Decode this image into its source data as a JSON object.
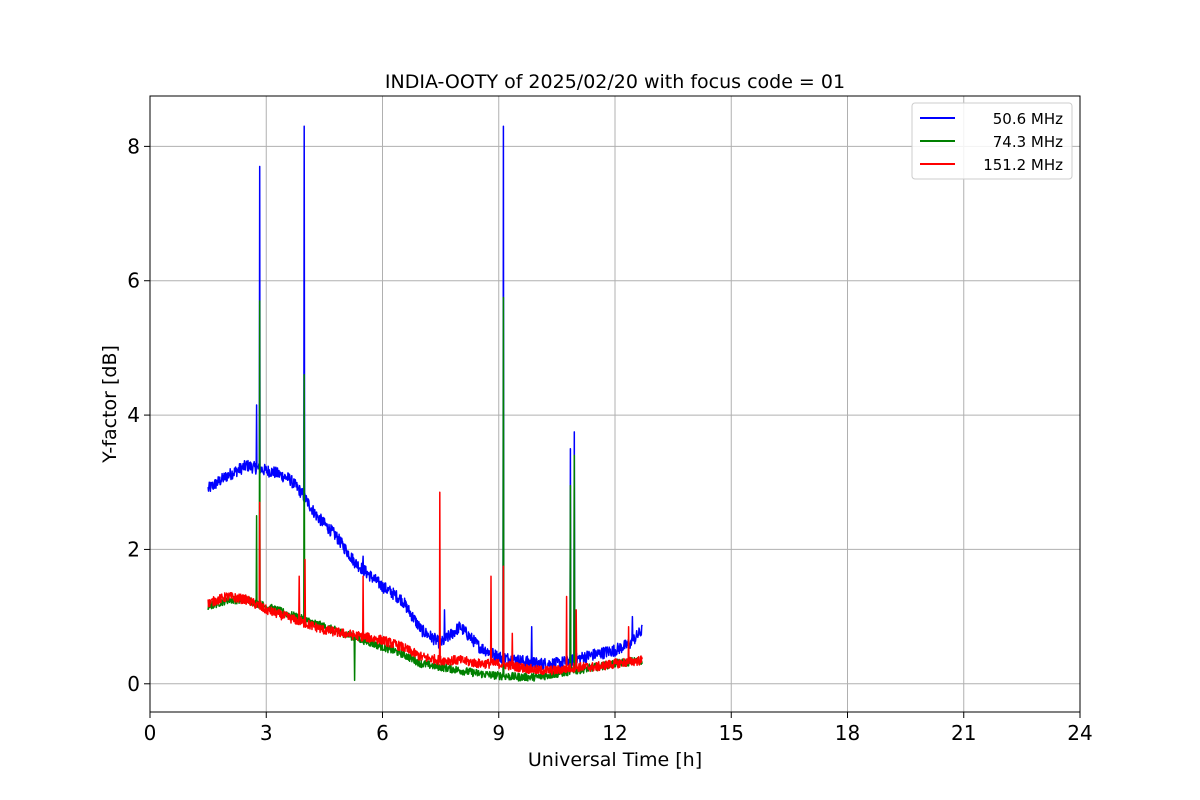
{
  "chart_data": {
    "type": "line",
    "title": "INDIA-OOTY of 2025/02/20 with focus code = 01",
    "xlabel": "Universal Time [h]",
    "ylabel": "Y-factor [dB]",
    "xlim": [
      0,
      24
    ],
    "ylim": [
      -0.42,
      8.75
    ],
    "xticks": [
      0,
      3,
      6,
      9,
      12,
      15,
      18,
      21,
      24
    ],
    "yticks": [
      0,
      2,
      4,
      6,
      8
    ],
    "grid": true,
    "legend_position": "top-right",
    "series": [
      {
        "name": " 50.6 MHz",
        "color": "#0000ff",
        "noise": 0.09,
        "x": [
          1.5,
          2.0,
          2.5,
          2.8,
          3.2,
          3.6,
          3.9,
          4.3,
          4.8,
          5.3,
          5.7,
          6.0,
          6.5,
          7.0,
          7.5,
          8.0,
          8.5,
          9.0,
          9.5,
          10.0,
          10.5,
          10.9,
          11.2,
          11.6,
          12.0,
          12.4,
          12.7
        ],
        "y": [
          2.9,
          3.1,
          3.25,
          3.2,
          3.15,
          3.05,
          2.85,
          2.5,
          2.2,
          1.8,
          1.6,
          1.45,
          1.25,
          0.8,
          0.6,
          0.85,
          0.55,
          0.4,
          0.35,
          0.3,
          0.3,
          0.35,
          0.4,
          0.45,
          0.5,
          0.6,
          0.8
        ],
        "spikes": [
          [
            2.75,
            4.15
          ],
          [
            2.83,
            7.7
          ],
          [
            3.98,
            8.3
          ],
          [
            5.5,
            1.9
          ],
          [
            7.6,
            1.1
          ],
          [
            9.12,
            8.3
          ],
          [
            9.85,
            0.85
          ],
          [
            10.85,
            3.5
          ],
          [
            10.95,
            3.75
          ],
          [
            12.45,
            1.0
          ]
        ]
      },
      {
        "name": " 74.3 MHz",
        "color": "#008000",
        "noise": 0.06,
        "x": [
          1.5,
          2.0,
          2.5,
          3.0,
          3.5,
          4.0,
          4.5,
          5.0,
          5.5,
          6.0,
          6.5,
          7.0,
          7.5,
          8.0,
          8.5,
          9.0,
          9.5,
          10.0,
          10.5,
          11.0,
          11.5,
          12.0,
          12.7
        ],
        "y": [
          1.15,
          1.25,
          1.25,
          1.15,
          1.05,
          0.95,
          0.85,
          0.75,
          0.65,
          0.55,
          0.45,
          0.3,
          0.25,
          0.2,
          0.15,
          0.12,
          0.1,
          0.1,
          0.15,
          0.2,
          0.25,
          0.3,
          0.35
        ],
        "spikes": [
          [
            2.75,
            2.5
          ],
          [
            2.83,
            5.7
          ],
          [
            3.98,
            4.6
          ],
          [
            9.12,
            5.75
          ],
          [
            10.85,
            2.95
          ],
          [
            10.95,
            3.4
          ]
        ],
        "dips": [
          [
            5.28,
            0.05
          ]
        ]
      },
      {
        "name": "151.2 MHz",
        "color": "#ff0000",
        "noise": 0.07,
        "x": [
          1.5,
          2.0,
          2.5,
          3.0,
          3.5,
          4.0,
          4.5,
          5.0,
          5.5,
          6.0,
          6.5,
          7.0,
          7.5,
          8.0,
          8.5,
          9.0,
          9.5,
          10.0,
          10.5,
          11.0,
          11.5,
          12.0,
          12.7
        ],
        "y": [
          1.2,
          1.3,
          1.25,
          1.1,
          1.0,
          0.9,
          0.8,
          0.75,
          0.7,
          0.65,
          0.55,
          0.4,
          0.35,
          0.35,
          0.3,
          0.3,
          0.25,
          0.2,
          0.2,
          0.25,
          0.25,
          0.3,
          0.35
        ],
        "spikes": [
          [
            2.83,
            2.7
          ],
          [
            3.85,
            1.6
          ],
          [
            4.0,
            1.85
          ],
          [
            5.5,
            1.6
          ],
          [
            7.48,
            2.85
          ],
          [
            8.8,
            1.6
          ],
          [
            9.12,
            1.75
          ],
          [
            9.35,
            0.75
          ],
          [
            10.75,
            1.3
          ],
          [
            11.0,
            1.1
          ],
          [
            12.35,
            0.85
          ]
        ]
      }
    ]
  }
}
